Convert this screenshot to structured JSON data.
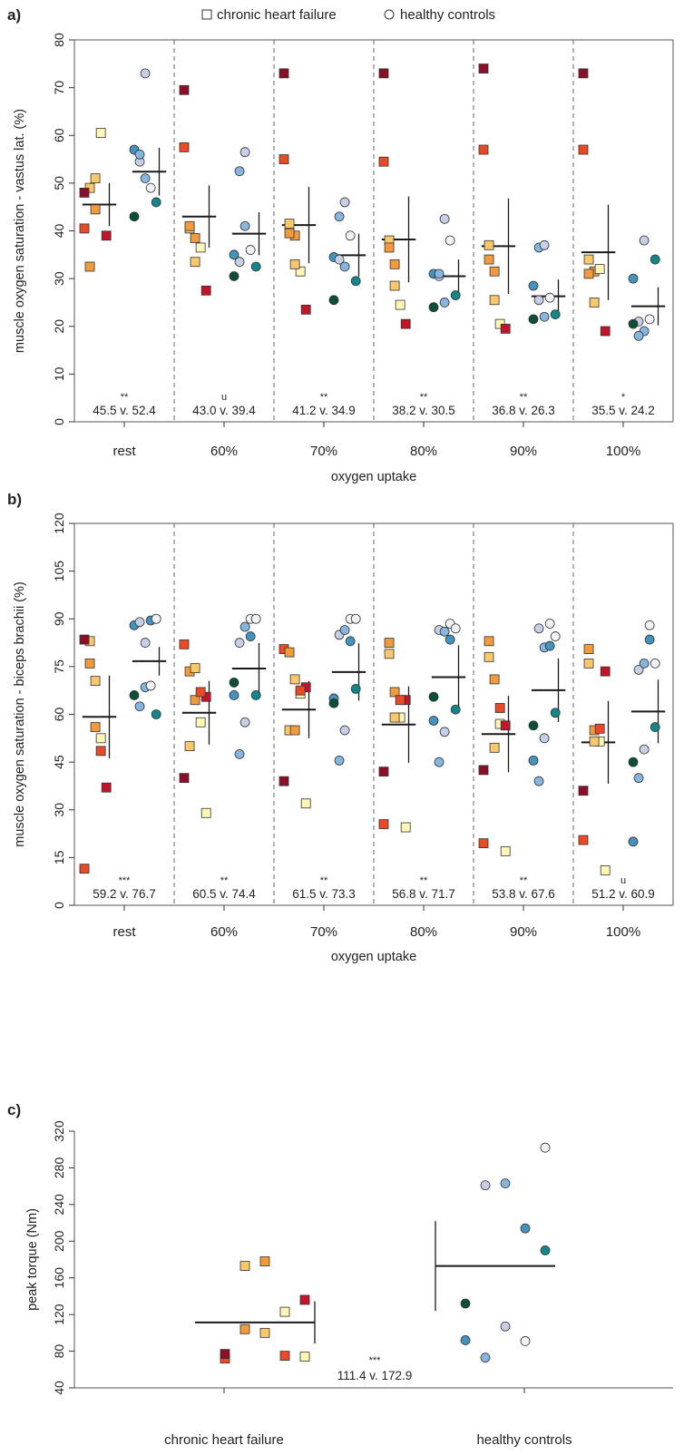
{
  "legend": {
    "chf": "chronic heart failure",
    "hc": "healthy controls"
  },
  "colors": {
    "chf": [
      "#fff7b3",
      "#f9c86a",
      "#f39a3b",
      "#ea4a25",
      "#c8122a",
      "#8b0f26"
    ],
    "hc": [
      "#f2f1f6",
      "#c7cfe6",
      "#88b5dd",
      "#4393be",
      "#14868a",
      "#0c4f39"
    ]
  },
  "chart_data": [
    {
      "panel": "a)",
      "type": "scatter",
      "ylabel": "muscle oxygen saturation - vastus lat. (%)",
      "xlabel": "oxygen uptake",
      "ylim": [
        0,
        80
      ],
      "yticks": [
        0,
        10,
        20,
        30,
        40,
        50,
        60,
        70,
        80
      ],
      "categories": [
        "rest",
        "60%",
        "70%",
        "80%",
        "90%",
        "100%"
      ],
      "means": {
        "chf": [
          45.5,
          43.0,
          41.2,
          38.2,
          36.8,
          35.5
        ],
        "hc": [
          52.4,
          39.4,
          34.9,
          30.5,
          26.3,
          24.2
        ]
      },
      "sd": {
        "chf": [
          4.5,
          6.5,
          8,
          9,
          10,
          10
        ],
        "hc": [
          5,
          4.5,
          4.5,
          3.5,
          3.5,
          4
        ]
      },
      "annotations": [
        "45.5 v. 52.4",
        "43.0 v. 39.4",
        "41.2 v. 34.9",
        "38.2 v. 30.5",
        "36.8 v. 26.3",
        "35.5 v. 24.2"
      ],
      "significance": [
        "**",
        "u",
        "**",
        "**",
        "**",
        "*"
      ],
      "points": {
        "chf": [
          [
            40.5,
            49,
            44.5,
            60.5,
            39,
            48,
            32.5,
            51
          ],
          [
            57.5,
            40.5,
            38.5,
            36.5,
            27.5,
            69.5,
            41,
            33.5
          ],
          [
            55,
            41.5,
            39,
            31.5,
            23.5,
            73,
            39.5,
            33
          ],
          [
            54.5,
            38,
            33,
            24.5,
            20.5,
            73,
            36.5,
            28.5
          ],
          [
            57,
            37,
            31.5,
            20.5,
            19.5,
            74,
            34,
            25.5
          ],
          [
            57,
            34,
            31.5,
            32,
            19,
            73,
            31,
            25
          ]
        ],
        "hc": [
          [
            57,
            54.5,
            51,
            49,
            46,
            43,
            56,
            73
          ],
          [
            35,
            33.5,
            41,
            36,
            32.5,
            30.5,
            52.5,
            56.5
          ],
          [
            34.5,
            34,
            32.5,
            39,
            29.5,
            25.5,
            43,
            46
          ],
          [
            31,
            30.5,
            25,
            38,
            26.5,
            24,
            31,
            42.5
          ],
          [
            28.5,
            25.5,
            22,
            26,
            22.5,
            21.5,
            36.5,
            37
          ],
          [
            30,
            21,
            19,
            21.5,
            34,
            20.5,
            18,
            38
          ]
        ]
      }
    },
    {
      "panel": "b)",
      "type": "scatter",
      "ylabel": "muscle oxygen saturation - biceps brachii (%)",
      "xlabel": "oxygen uptake",
      "ylim": [
        0,
        120
      ],
      "yticks": [
        0,
        15,
        30,
        45,
        60,
        75,
        90,
        105,
        120
      ],
      "categories": [
        "rest",
        "60%",
        "70%",
        "80%",
        "90%",
        "100%"
      ],
      "means": {
        "chf": [
          59.2,
          60.5,
          61.5,
          56.8,
          53.8,
          51.2
        ],
        "hc": [
          76.7,
          74.4,
          73.3,
          71.7,
          67.6,
          60.9
        ]
      },
      "sd": {
        "chf": [
          13,
          10,
          9,
          12,
          12,
          13
        ],
        "hc": [
          4.5,
          8,
          9,
          10,
          10,
          10
        ]
      },
      "annotations": [
        "59.2 v. 76.7",
        "60.5 v. 74.4",
        "61.5 v. 73.3",
        "56.8 v. 71.7",
        "53.8 v. 67.6",
        "51.2 v. 60.9"
      ],
      "significance": [
        "***",
        "**",
        "**",
        "**",
        "**",
        "u"
      ],
      "points": {
        "chf": [
          [
            11.5,
            83,
            56,
            52.5,
            37,
            83.5,
            76,
            70.5,
            48.5
          ],
          [
            82,
            50,
            64.5,
            57.5,
            65.5,
            40,
            73.5,
            74.5,
            67,
            29
          ],
          [
            80.5,
            55,
            55,
            66.5,
            68.5,
            39,
            79.5,
            71,
            67.5,
            32
          ],
          [
            25.5,
            79,
            67,
            59,
            64.5,
            42,
            82.5,
            59,
            64.5,
            24.5
          ],
          [
            19.5,
            78,
            71,
            57,
            56.5,
            42.5,
            83,
            49.5,
            62,
            17
          ],
          [
            20.5,
            76,
            55,
            51.5,
            73.5,
            36,
            80.5,
            51.5,
            55.5,
            11
          ]
        ],
        "hc": [
          [
            88,
            89,
            68.5,
            69,
            60,
            66,
            62.5,
            82.5,
            89.5,
            90
          ],
          [
            66,
            82.5,
            87.5,
            90,
            66,
            70,
            47.5,
            57.5,
            84.5,
            90
          ],
          [
            65,
            85,
            86.5,
            90,
            68,
            63.5,
            45.5,
            55,
            83,
            90
          ],
          [
            58,
            86.5,
            86,
            88.5,
            61.5,
            65.5,
            45,
            54.5,
            83.5,
            87
          ],
          [
            45.5,
            87,
            81,
            88.5,
            60.5,
            56.5,
            39,
            52.5,
            81.5,
            84.5
          ],
          [
            20,
            74,
            76,
            88,
            56,
            45,
            40,
            49,
            83.5,
            76
          ]
        ]
      }
    },
    {
      "panel": "c)",
      "type": "scatter",
      "ylabel": "peak torque (Nm)",
      "ylim": [
        40,
        320
      ],
      "yticks": [
        40,
        80,
        120,
        160,
        200,
        240,
        280,
        320
      ],
      "categories": [
        "chronic heart failure",
        "healthy controls"
      ],
      "means": [
        111.4,
        172.9
      ],
      "sd": [
        23,
        49
      ],
      "annotation": "111.4 v. 172.9",
      "significance": "***",
      "points": {
        "chf": [
          72,
          173,
          178,
          123,
          136,
          77,
          104,
          100,
          75,
          74
        ],
        "hc": [
          92,
          261,
          263,
          91,
          190,
          132,
          73,
          107,
          214,
          302
        ]
      }
    }
  ]
}
